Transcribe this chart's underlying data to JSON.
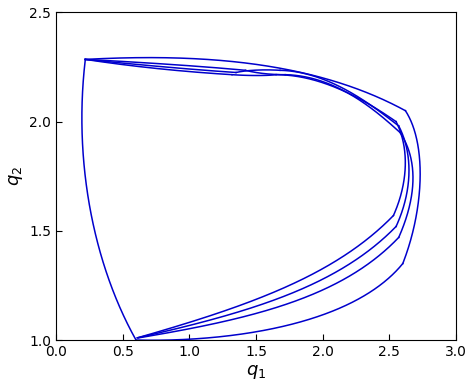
{
  "xlim": [
    0,
    3
  ],
  "ylim": [
    1,
    2.5
  ],
  "xticks": [
    0,
    0.5,
    1,
    1.5,
    2,
    2.5,
    3
  ],
  "yticks": [
    1,
    1.5,
    2,
    2.5
  ],
  "xlabel": "$q_1$",
  "ylabel": "$q_2$",
  "line_color": "#0000cc",
  "line_width": 1.1,
  "background_color": "#ffffff",
  "figsize": [
    4.74,
    3.88
  ],
  "dpi": 100
}
